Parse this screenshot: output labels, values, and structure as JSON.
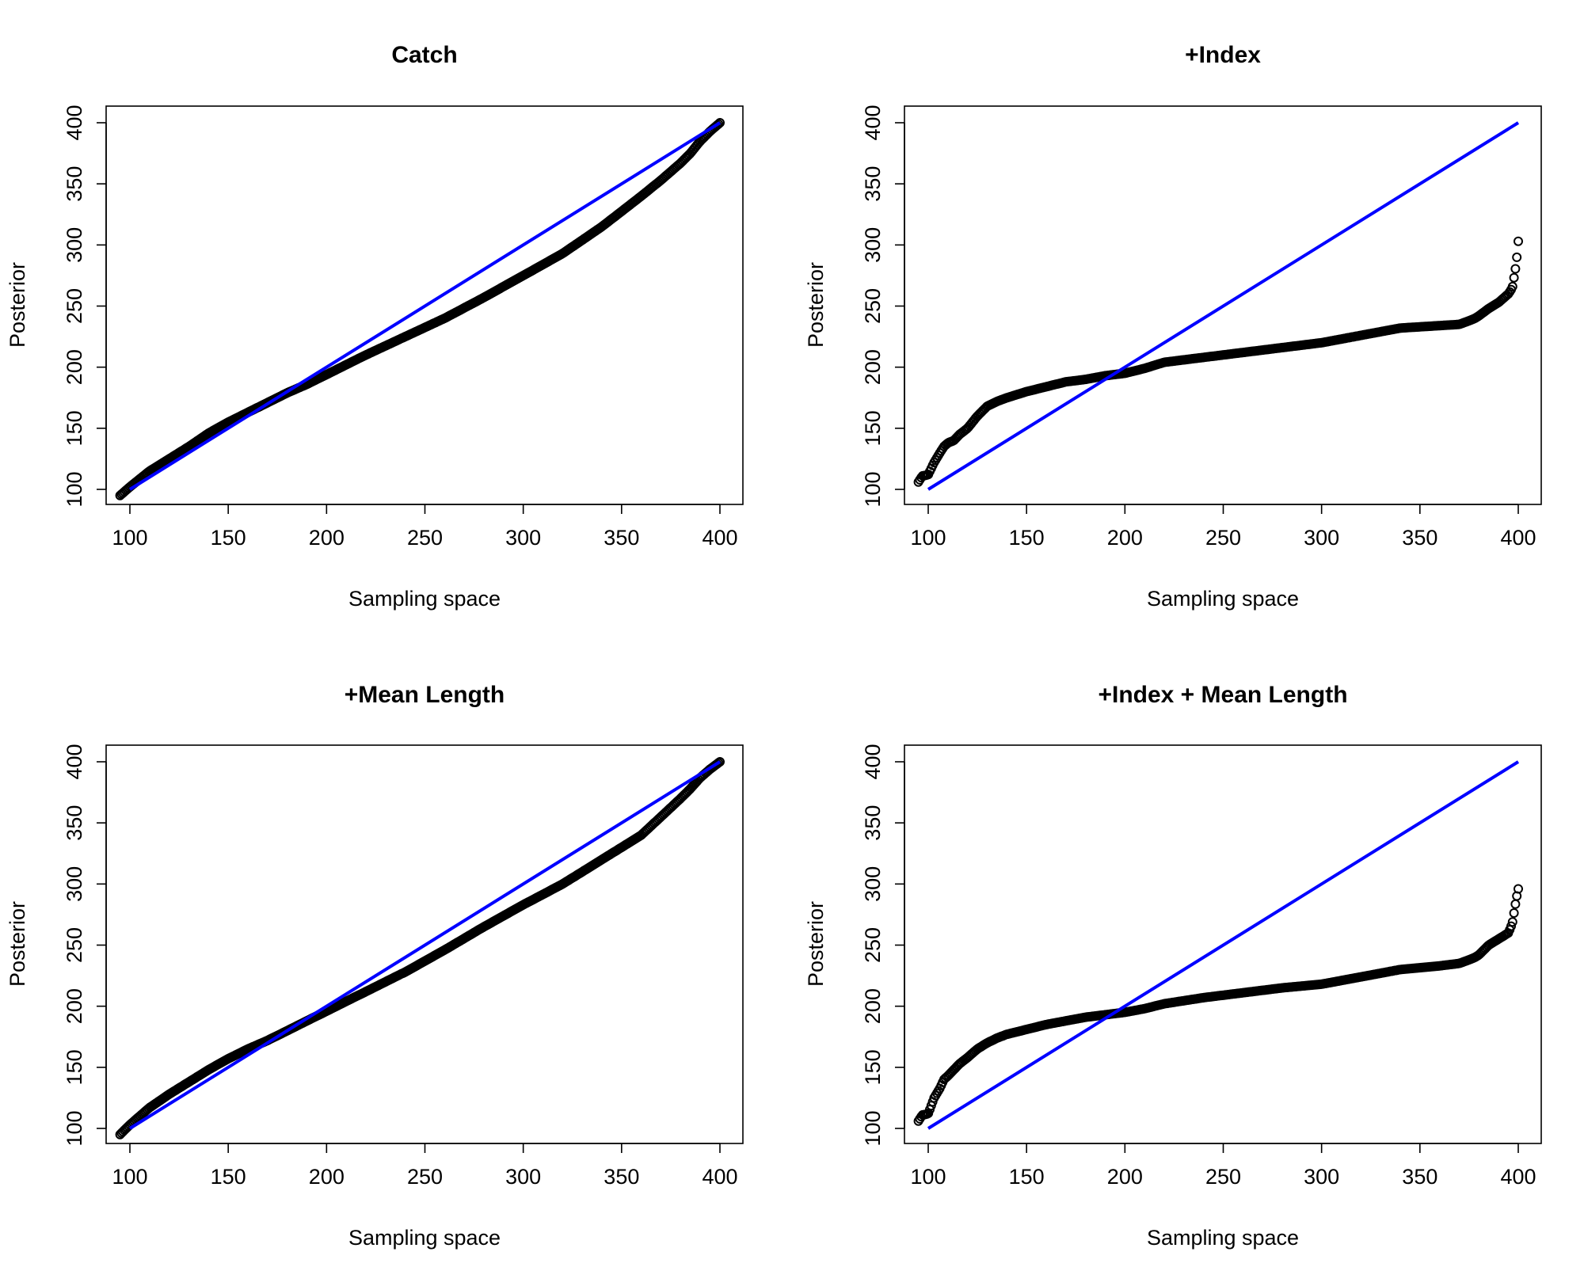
{
  "chart_data": [
    {
      "type": "scatter",
      "title": "Catch",
      "xlabel": "Sampling space",
      "ylabel": "Posterior",
      "xlim": [
        100,
        400
      ],
      "ylim": [
        100,
        400
      ],
      "xticks": [
        "100",
        "150",
        "200",
        "250",
        "300",
        "350",
        "400"
      ],
      "yticks": [
        "100",
        "150",
        "200",
        "250",
        "300",
        "350",
        "400"
      ],
      "grid": false,
      "reference_line": {
        "x": [
          100,
          400
        ],
        "y": [
          100,
          400
        ],
        "color": "#0000ff"
      },
      "series": [
        {
          "color": "#000000",
          "x": [
            95,
            100,
            110,
            120,
            130,
            140,
            150,
            160,
            170,
            180,
            190,
            200,
            220,
            240,
            260,
            280,
            300,
            320,
            340,
            360,
            370,
            380,
            385,
            390,
            395,
            400
          ],
          "y": [
            95,
            102,
            115,
            125,
            135,
            146,
            155,
            163,
            171,
            179,
            186,
            194,
            210,
            225,
            240,
            257,
            275,
            293,
            315,
            340,
            353,
            367,
            375,
            385,
            393,
            400
          ]
        }
      ]
    },
    {
      "type": "scatter",
      "title": "+Index",
      "xlabel": "Sampling space",
      "ylabel": "Posterior",
      "xlim": [
        100,
        400
      ],
      "ylim": [
        100,
        400
      ],
      "xticks": [
        "100",
        "150",
        "200",
        "250",
        "300",
        "350",
        "400"
      ],
      "yticks": [
        "100",
        "150",
        "200",
        "250",
        "300",
        "350",
        "400"
      ],
      "grid": false,
      "reference_line": {
        "x": [
          100,
          400
        ],
        "y": [
          100,
          400
        ],
        "color": "#0000ff"
      },
      "series": [
        {
          "color": "#000000",
          "x": [
            95,
            97,
            100,
            103,
            106,
            108,
            110,
            113,
            116,
            120,
            125,
            130,
            135,
            140,
            150,
            160,
            170,
            180,
            190,
            200,
            210,
            220,
            240,
            260,
            280,
            300,
            320,
            340,
            360,
            370,
            375,
            378,
            380,
            385,
            390,
            395,
            397,
            398,
            399,
            400
          ],
          "y": [
            106,
            111,
            112,
            122,
            130,
            135,
            138,
            140,
            145,
            150,
            160,
            168,
            172,
            175,
            180,
            184,
            188,
            190,
            193,
            195,
            199,
            204,
            208,
            212,
            216,
            220,
            226,
            232,
            234,
            235,
            238,
            240,
            242,
            248,
            253,
            260,
            265,
            275,
            285,
            303
          ]
        }
      ]
    },
    {
      "type": "scatter",
      "title": "+Mean Length",
      "xlabel": "Sampling space",
      "ylabel": "Posterior",
      "xlim": [
        100,
        400
      ],
      "ylim": [
        100,
        400
      ],
      "xticks": [
        "100",
        "150",
        "200",
        "250",
        "300",
        "350",
        "400"
      ],
      "yticks": [
        "100",
        "150",
        "200",
        "250",
        "300",
        "350",
        "400"
      ],
      "grid": false,
      "reference_line": {
        "x": [
          100,
          400
        ],
        "y": [
          100,
          400
        ],
        "color": "#0000ff"
      },
      "series": [
        {
          "color": "#000000",
          "x": [
            95,
            100,
            110,
            120,
            130,
            140,
            150,
            160,
            170,
            180,
            190,
            200,
            220,
            240,
            260,
            280,
            300,
            320,
            340,
            360,
            370,
            380,
            385,
            390,
            395,
            400
          ],
          "y": [
            95,
            103,
            117,
            128,
            138,
            148,
            157,
            165,
            172,
            180,
            188,
            196,
            212,
            228,
            246,
            265,
            283,
            300,
            320,
            340,
            355,
            370,
            378,
            387,
            394,
            400
          ]
        }
      ]
    },
    {
      "type": "scatter",
      "title": "+Index + Mean Length",
      "xlabel": "Sampling space",
      "ylabel": "Posterior",
      "xlim": [
        100,
        400
      ],
      "ylim": [
        100,
        400
      ],
      "xticks": [
        "100",
        "150",
        "200",
        "250",
        "300",
        "350",
        "400"
      ],
      "yticks": [
        "100",
        "150",
        "200",
        "250",
        "300",
        "350",
        "400"
      ],
      "grid": false,
      "reference_line": {
        "x": [
          100,
          400
        ],
        "y": [
          100,
          400
        ],
        "color": "#0000ff"
      },
      "series": [
        {
          "color": "#000000",
          "x": [
            95,
            97,
            100,
            103,
            106,
            108,
            110,
            113,
            116,
            120,
            125,
            130,
            135,
            140,
            150,
            160,
            170,
            180,
            190,
            200,
            210,
            220,
            240,
            260,
            280,
            300,
            320,
            340,
            360,
            370,
            375,
            378,
            380,
            385,
            390,
            395,
            397,
            398,
            399,
            400
          ],
          "y": [
            106,
            111,
            112,
            125,
            133,
            140,
            143,
            148,
            153,
            158,
            165,
            170,
            174,
            177,
            181,
            185,
            188,
            191,
            193,
            195,
            198,
            202,
            207,
            211,
            215,
            218,
            224,
            230,
            233,
            235,
            238,
            240,
            242,
            250,
            255,
            260,
            268,
            278,
            288,
            296
          ]
        }
      ]
    }
  ]
}
